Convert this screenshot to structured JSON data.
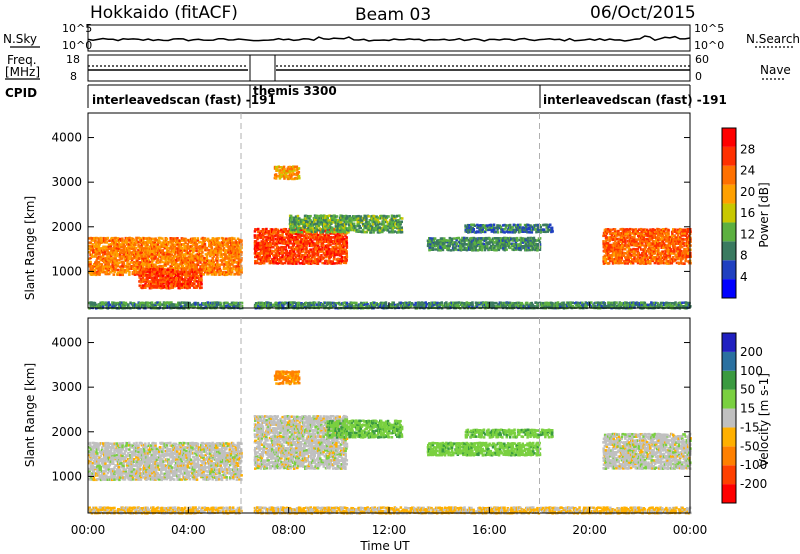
{
  "header": {
    "title": "Hokkaido (fitACF)",
    "beam": "Beam 03",
    "date": "06/Oct/2015"
  },
  "top_panels": {
    "nsky_label": "N.Sky",
    "nsky_ticks": [
      "10^5",
      "10^0"
    ],
    "nsearch_label": "N.Search",
    "nsearch_ticks": [
      "10^5",
      "10^0"
    ],
    "freq_label_1": "Freq.",
    "freq_label_2": "[MHz]",
    "freq_ticks": [
      "18",
      "8"
    ],
    "nave_label": "Nave",
    "nave_ticks": [
      "60",
      "0"
    ],
    "cpid_label": "CPID",
    "cpid_segments": [
      {
        "start": 0.0,
        "end": 6.3,
        "label": "interleavedscan (fast) -191"
      },
      {
        "start": 6.3,
        "end": 18.0,
        "label": "themis 3300"
      },
      {
        "start": 18.0,
        "end": 24.0,
        "label": "interleavedscan (fast) -191"
      }
    ]
  },
  "chart_data": [
    {
      "type": "heatmap",
      "name": "power",
      "ylabel": "Slant Range [km]",
      "yticks": [
        "1000",
        "2000",
        "3000",
        "4000"
      ],
      "ylim": [
        180,
        4550
      ],
      "xlim": [
        0,
        24
      ],
      "colorbar_label": "Power [dB]",
      "colorbar_ticks": [
        "4",
        "8",
        "12",
        "16",
        "20",
        "24",
        "28"
      ],
      "colorbar_range": [
        0,
        32
      ],
      "colors": [
        "#0000ff",
        "#2040c0",
        "#3a7a60",
        "#5cb040",
        "#c8c800",
        "#ffa000",
        "#ff7000",
        "#ff3000",
        "#ff0000"
      ],
      "data_gap_hours": [
        6.1,
        6.6
      ],
      "regions": [
        {
          "t0": 0.0,
          "t1": 6.1,
          "r0": 950,
          "r1": 1800,
          "level": 22
        },
        {
          "t0": 2.0,
          "t1": 4.5,
          "r0": 650,
          "r1": 1100,
          "level": 26
        },
        {
          "t0": 6.6,
          "t1": 10.3,
          "r0": 1200,
          "r1": 2000,
          "level": 26
        },
        {
          "t0": 7.4,
          "t1": 8.4,
          "r0": 3100,
          "r1": 3400,
          "level": 20
        },
        {
          "t0": 8.0,
          "t1": 12.5,
          "r0": 1900,
          "r1": 2300,
          "level": 12
        },
        {
          "t0": 13.5,
          "t1": 18.0,
          "r0": 1500,
          "r1": 1800,
          "level": 10
        },
        {
          "t0": 15.0,
          "t1": 18.5,
          "r0": 1900,
          "r1": 2100,
          "level": 8
        },
        {
          "t0": 20.5,
          "t1": 24.0,
          "r0": 1200,
          "r1": 2000,
          "level": 24
        },
        {
          "t0": 0.0,
          "t1": 24.0,
          "r0": 200,
          "r1": 350,
          "level": 10
        }
      ]
    },
    {
      "type": "heatmap",
      "name": "velocity",
      "ylabel": "Slant Range [km]",
      "yticks": [
        "1000",
        "2000",
        "3000",
        "4000"
      ],
      "ylim": [
        180,
        4550
      ],
      "xlim": [
        0,
        24
      ],
      "xticks": [
        "00:00",
        "04:00",
        "08:00",
        "12:00",
        "16:00",
        "20:00",
        "00:00"
      ],
      "xlabel": "Time UT",
      "colorbar_label": "Velocity [m s-1]",
      "colorbar_ticks": [
        "-200",
        "-100",
        "-50",
        "-15",
        "15",
        "50",
        "100",
        "200"
      ],
      "colors": [
        "#ff0000",
        "#ff4000",
        "#ff8000",
        "#ffb000",
        "#c0c0c0",
        "#7ad040",
        "#3a9a40",
        "#2a70a0",
        "#2020c0"
      ],
      "data_gap_hours": [
        6.1,
        6.6
      ],
      "regions": [
        {
          "t0": 0.0,
          "t1": 6.1,
          "r0": 950,
          "r1": 1800,
          "level": 0
        },
        {
          "t0": 6.6,
          "t1": 10.3,
          "r0": 1200,
          "r1": 2400,
          "level": 0
        },
        {
          "t0": 7.4,
          "t1": 8.4,
          "r0": 3100,
          "r1": 3400,
          "level": -60
        },
        {
          "t0": 9.5,
          "t1": 12.5,
          "r0": 1900,
          "r1": 2300,
          "level": 40
        },
        {
          "t0": 13.5,
          "t1": 18.0,
          "r0": 1500,
          "r1": 1800,
          "level": 35
        },
        {
          "t0": 15.0,
          "t1": 18.5,
          "r0": 1900,
          "r1": 2100,
          "level": 40
        },
        {
          "t0": 20.5,
          "t1": 24.0,
          "r0": 1200,
          "r1": 2000,
          "level": 0
        },
        {
          "t0": 0.0,
          "t1": 24.0,
          "r0": 200,
          "r1": 350,
          "level": -20
        }
      ]
    }
  ],
  "guides": {
    "vertical_dashed_hours": [
      6.1,
      18.0
    ]
  }
}
